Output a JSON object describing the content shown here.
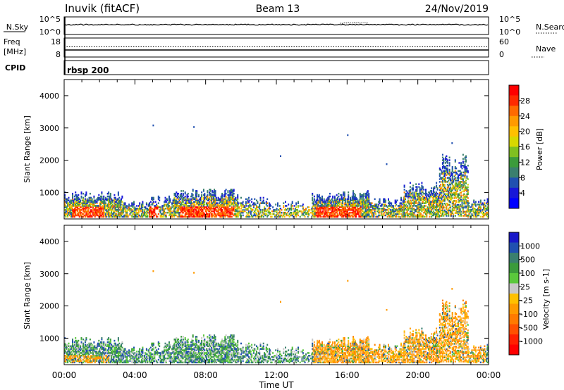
{
  "header": {
    "station": "Inuvik (fitACF)",
    "beam": "Beam 13",
    "date": "24/Nov/2019"
  },
  "strips": {
    "nsky": {
      "label": "N.Sky",
      "ticks": [
        "10^5",
        "10^0"
      ],
      "right_label": "N.Search",
      "right_ticks": [
        "10^5",
        "10^0"
      ]
    },
    "freq": {
      "label_top": "Freq",
      "label_unit": "[MHz]",
      "ticks": [
        "18",
        "8"
      ],
      "right_label": "Nave",
      "right_ticks": [
        "60",
        "0"
      ]
    },
    "cpid": {
      "label": "CPID",
      "value": "rbsp 200"
    }
  },
  "chart_data": [
    {
      "type": "heatmap",
      "title": "",
      "quantity": "Power",
      "ylabel": "Slant Range [km]",
      "colorbar_label": "Power [dB]",
      "ylim": [
        180,
        4500
      ],
      "yticks": [
        "1000",
        "2000",
        "3000",
        "4000"
      ],
      "xlim_hours": [
        0,
        24
      ],
      "colorbar": {
        "ticks": [
          "28",
          "24",
          "20",
          "16",
          "12",
          "8",
          "4"
        ],
        "colors": [
          "#ff0000",
          "#ff2a00",
          "#ff6a00",
          "#ff9a00",
          "#ffc000",
          "#d8d800",
          "#7fc020",
          "#3b9b3b",
          "#3a7f6e",
          "#2050b0",
          "#1818d8",
          "#0000ff"
        ]
      },
      "grid": false
    },
    {
      "type": "heatmap",
      "title": "",
      "quantity": "Velocity",
      "ylabel": "Slant Range [km]",
      "colorbar_label": "Velocity [m s-1]",
      "ylim": [
        180,
        4500
      ],
      "yticks": [
        "1000",
        "2000",
        "3000",
        "4000"
      ],
      "xlim_hours": [
        0,
        24
      ],
      "colorbar": {
        "ticks": [
          "1000",
          "500",
          "100",
          "25",
          "-25",
          "-100",
          "-500",
          "-1000"
        ],
        "colors": [
          "#1818c8",
          "#2050b0",
          "#3a7f6e",
          "#3b9b3b",
          "#5ac83c",
          "#c8c8c8",
          "#ffc000",
          "#ff9a00",
          "#ff7a00",
          "#ff5000",
          "#ff2000",
          "#ff0000"
        ]
      },
      "grid": false
    }
  ],
  "xaxis": {
    "ticks": [
      "00:00",
      "04:00",
      "08:00",
      "12:00",
      "16:00",
      "20:00",
      "00:00"
    ],
    "label": "Time UT"
  }
}
